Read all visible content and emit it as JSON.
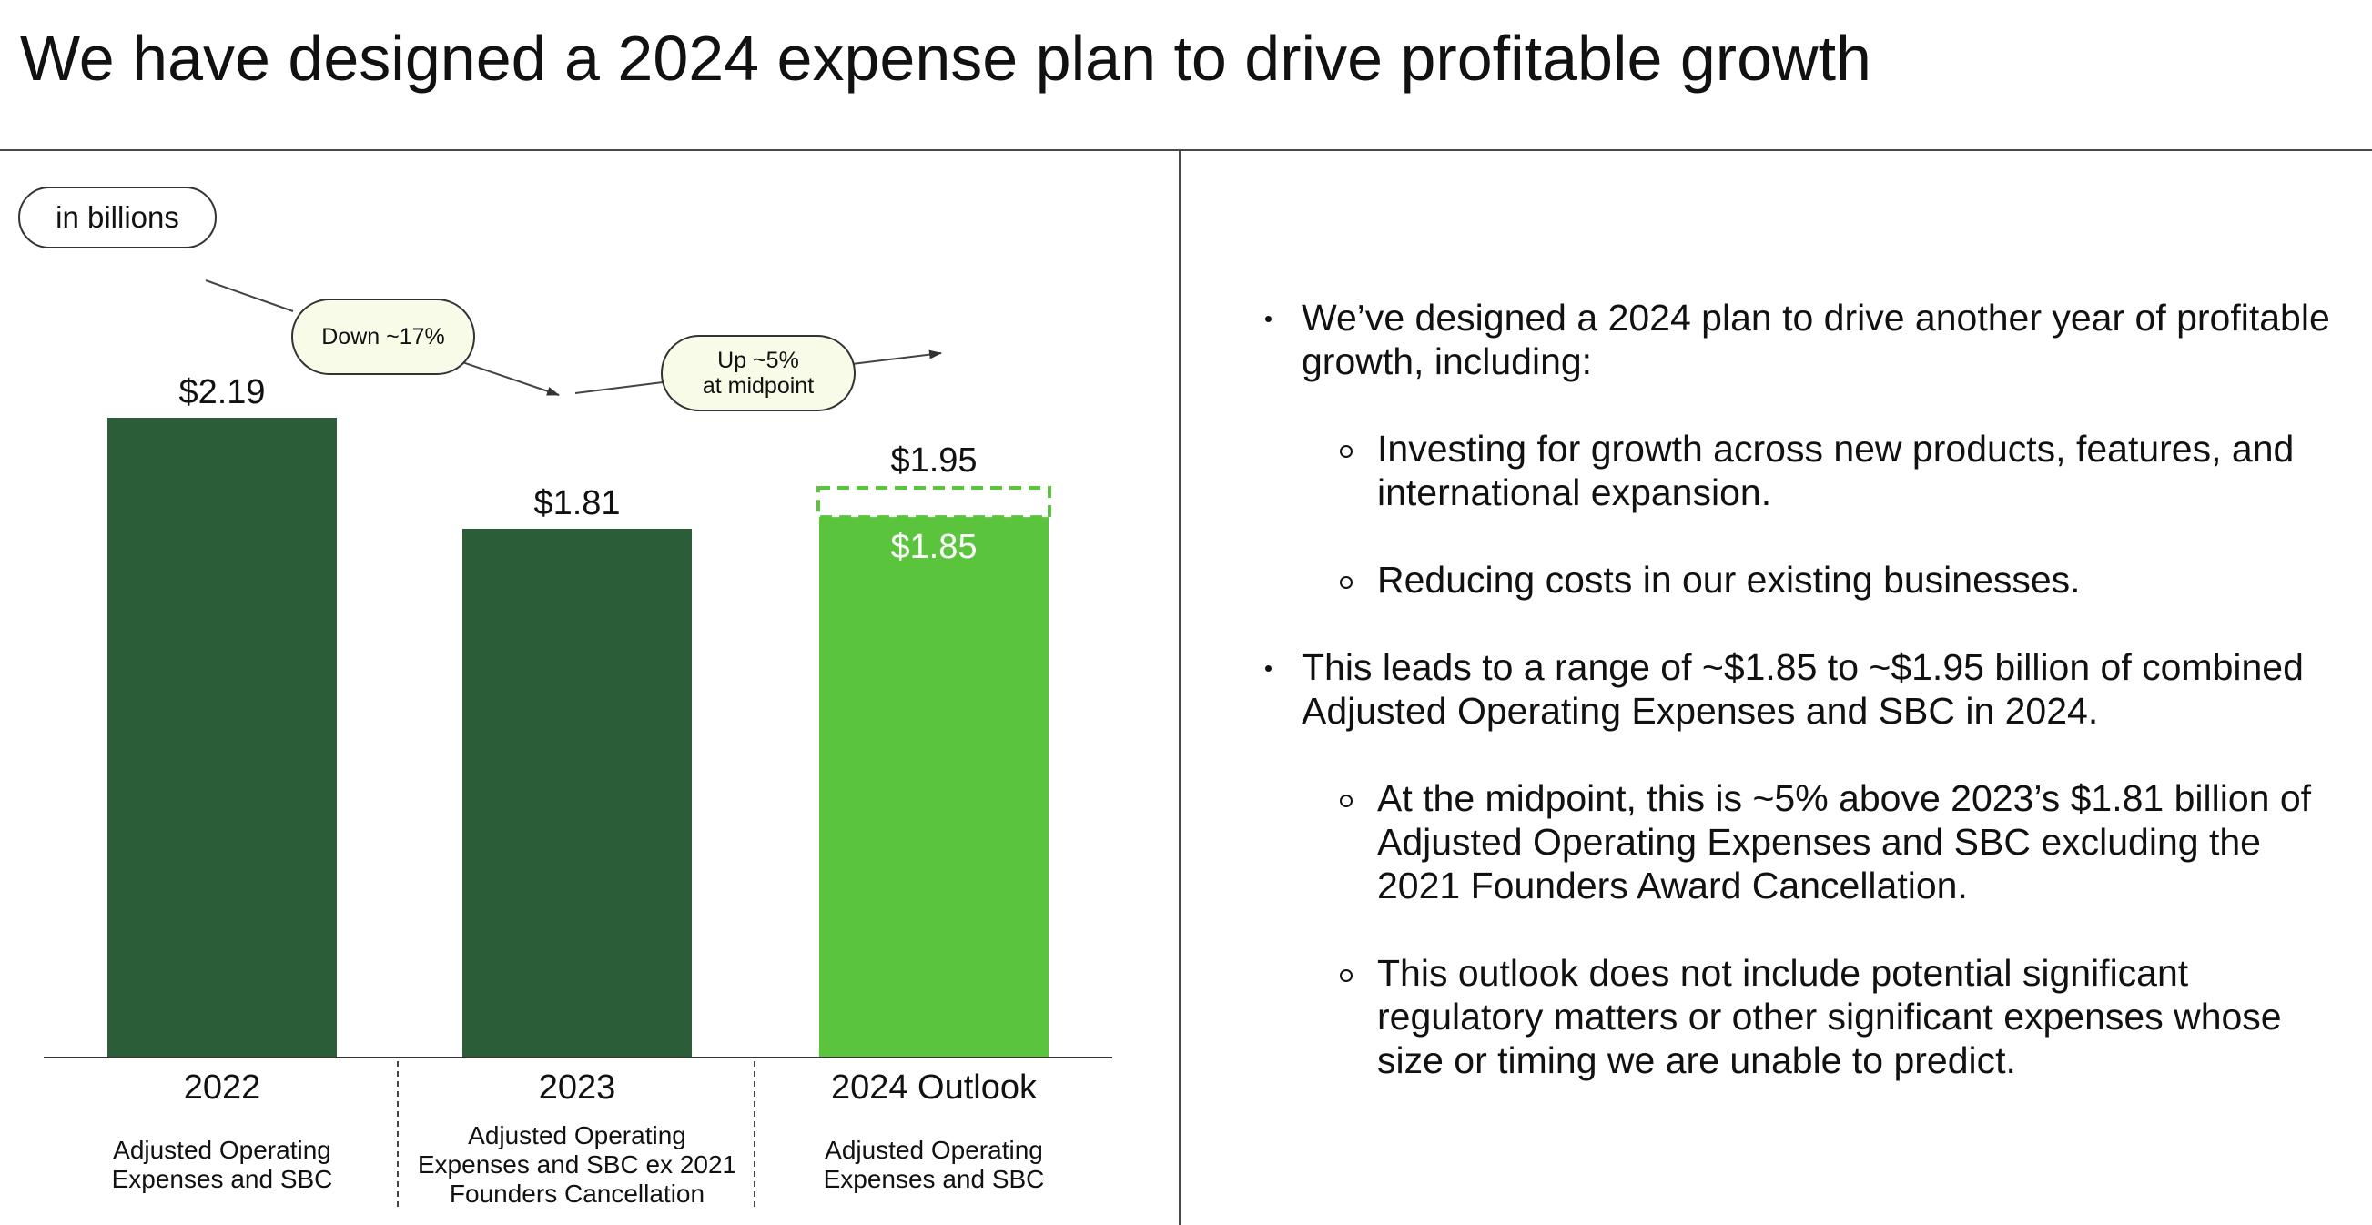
{
  "slide": {
    "title": "We have designed a 2024 expense plan to drive profitable growth"
  },
  "chart_data": {
    "type": "bar",
    "title": "",
    "unit_label": "in billions",
    "ylim": [
      0,
      2.3
    ],
    "categories": [
      "2022",
      "2023",
      "2024 Outlook"
    ],
    "category_sublabels": [
      [
        "Adjusted Operating",
        "Expenses and SBC"
      ],
      [
        "Adjusted Operating",
        "Expenses and SBC ex 2021",
        "Founders Cancellation"
      ],
      [
        "Adjusted Operating",
        "Expenses and SBC"
      ]
    ],
    "values": [
      2.19,
      1.81,
      1.85
    ],
    "value_labels": [
      "$2.19",
      "$1.81",
      "$1.85"
    ],
    "range_high": 1.95,
    "range_high_label": "$1.95",
    "colors": {
      "actual": "#2a5d38",
      "outlook": "#5bc43d",
      "range_outline": "#5bc43d",
      "callout_fill": "#f9fbe9",
      "axis": "#333333"
    },
    "annotations": [
      {
        "id": "down",
        "lines": [
          "Down ~17%"
        ],
        "from": "2022",
        "to": "2023"
      },
      {
        "id": "up",
        "lines": [
          "Up ~5%",
          "at midpoint"
        ],
        "from": "2023",
        "to": "2024 Outlook"
      }
    ]
  },
  "bullets": [
    {
      "level": 1,
      "text": "We’ve designed a 2024 plan to drive another year of profitable growth, including:"
    },
    {
      "level": 2,
      "text": "Investing for growth across new products, features, and international expansion."
    },
    {
      "level": 2,
      "text": "Reducing costs in our existing businesses."
    },
    {
      "level": 1,
      "text": "This leads to a range of ~$1.85 to ~$1.95 billion of combined Adjusted Operating Expenses and SBC in 2024."
    },
    {
      "level": 2,
      "text": "At the midpoint, this is ~5% above 2023’s $1.81 billion of Adjusted Operating Expenses and SBC excluding the 2021 Founders Award Cancellation."
    },
    {
      "level": 2,
      "text": "This outlook does not include potential significant regulatory matters or other significant expenses whose size or timing we are unable to predict."
    }
  ]
}
